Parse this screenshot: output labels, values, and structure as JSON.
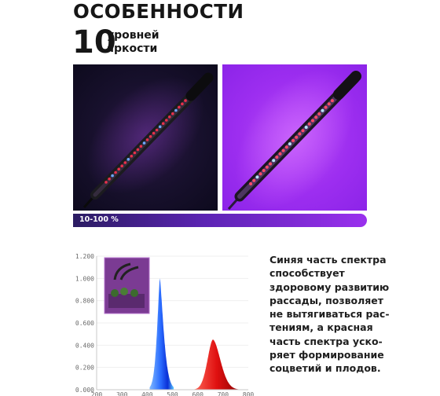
{
  "header": {
    "title": "ОСОБЕННОСТИ",
    "levels_number": "10",
    "levels_line1": "уровней",
    "levels_line2": "яркости"
  },
  "photos": [
    {
      "name": "lamp-photo-dim",
      "background": "#14102a"
    },
    {
      "name": "lamp-photo-bright",
      "background": "#9f2ff0"
    }
  ],
  "range_bar": {
    "label": "10-100 %"
  },
  "chart_data": {
    "type": "area",
    "x_ticks": [
      "200",
      "300",
      "400",
      "500",
      "600",
      "700",
      "800"
    ],
    "y_ticks": [
      "0.000",
      "0.200",
      "0.400",
      "0.600",
      "0.800",
      "1.000",
      "1.200"
    ],
    "xlim": [
      200,
      800
    ],
    "ylim": [
      0,
      1.2
    ],
    "series": [
      {
        "color": "blue",
        "peak_x": 450,
        "peak_y": 1.0
      },
      {
        "color": "red",
        "peak_x": 660,
        "peak_y": 0.45
      }
    ]
  },
  "description": {
    "lines": [
      "Синяя часть спектра",
      "способствует",
      "здоровому развитию",
      "рассады, позволяет",
      "не вытягиваться рас-",
      "тениям, а красная",
      "часть спектра уско-",
      "ряет формирование",
      "соцветий и плодов."
    ]
  }
}
